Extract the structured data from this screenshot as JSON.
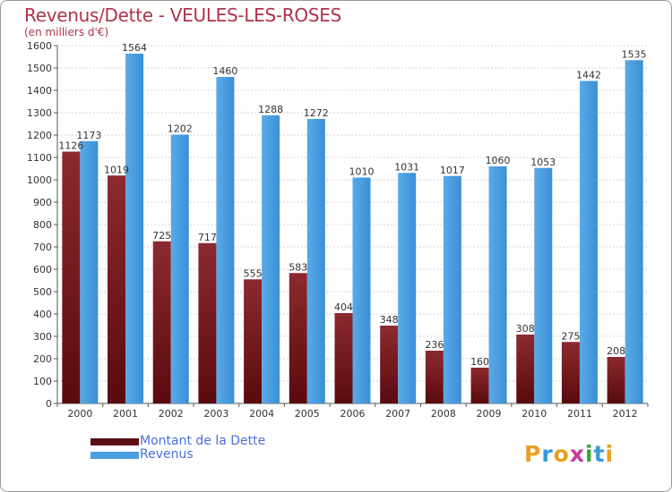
{
  "header": {
    "title": "Revenus/Dette - VEULES-LES-ROSES",
    "subtitle": "(en milliers d'€)"
  },
  "chart_data": {
    "type": "bar",
    "categories": [
      "2000",
      "2001",
      "2002",
      "2003",
      "2004",
      "2005",
      "2006",
      "2007",
      "2008",
      "2009",
      "2010",
      "2011",
      "2012"
    ],
    "series": [
      {
        "name": "Montant de la Dette",
        "values": [
          1126,
          1019,
          725,
          717,
          555,
          583,
          404,
          348,
          236,
          160,
          308,
          275,
          208
        ],
        "color": "#7b1f24"
      },
      {
        "name": "Revenus",
        "values": [
          1173,
          1564,
          1202,
          1460,
          1288,
          1272,
          1010,
          1031,
          1017,
          1060,
          1053,
          1442,
          1535
        ],
        "color": "#4a9fe0"
      }
    ],
    "ylim": [
      0,
      1600
    ],
    "yticks": [
      0,
      100,
      200,
      300,
      400,
      500,
      600,
      700,
      800,
      900,
      1000,
      1100,
      1200,
      1300,
      1400,
      1500,
      1600
    ],
    "grid": true,
    "legend_position": "bottom-left"
  },
  "legend": {
    "items": [
      {
        "label": "Montant de la Dette",
        "color": "#5a0f12"
      },
      {
        "label": "Revenus",
        "color": "#4a9fe0"
      }
    ]
  },
  "logo": {
    "letters": [
      "P",
      "r",
      "o",
      "x",
      "i",
      "t",
      "i"
    ],
    "colors": [
      "#e8a020",
      "#3a9ad9",
      "#e8a020",
      "#c83a9a",
      "#3aa53a",
      "#3a9ad9",
      "#e8a020"
    ]
  }
}
